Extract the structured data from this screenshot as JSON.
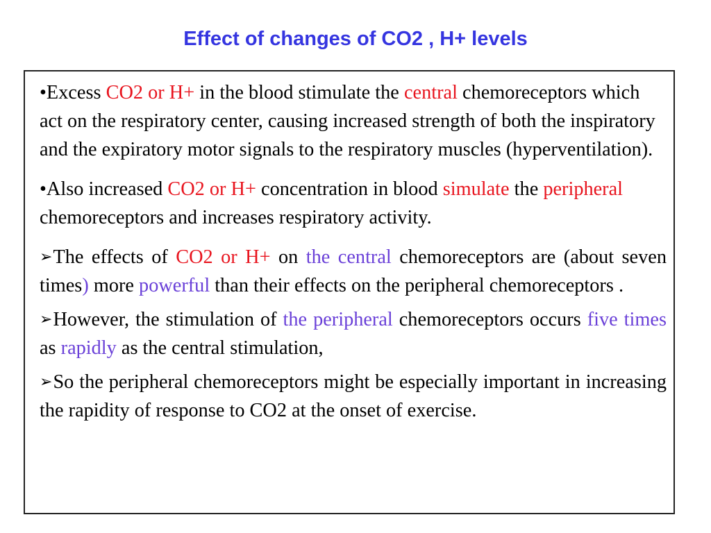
{
  "title": "Effect of changes of CO2 , H+ levels",
  "bullets": {
    "b1": {
      "marker": "•",
      "t1": "Excess ",
      "t2": "CO2 or H+",
      "t3": " in the blood stimulate the ",
      "t4": "central",
      "t5": " chemoreceptors  which act on the respiratory center, causing increased strength of both the inspiratory and the expiratory motor signals to the respiratory muscles (hyperventilation)."
    },
    "b2": {
      "marker": "•",
      "t1": "Also  increased ",
      "t2": "CO2  or H+",
      "t3": " concentration in blood  ",
      "t4": "simulate",
      "t5": " the ",
      "t6": "peripheral",
      "t7": " chemoreceptors and increases respiratory activity."
    }
  },
  "arrows": {
    "a1": {
      "marker": "➢",
      "t1": "The effects of ",
      "t2": "CO2 or H+",
      "t3": " on  ",
      "t4": "the central",
      "t5": " chemoreceptors are (about seven times",
      "t6": ")",
      "t7": " more ",
      "t8": "powerful",
      "t9": " than their effects on the peripheral chemoreceptors ."
    },
    "a2": {
      "marker": "➢",
      "t1": "However, the stimulation of ",
      "t2": "the peripheral",
      "t3": " chemoreceptors occurs ",
      "t4": "five times",
      "t5": " as ",
      "t6": "rapidly",
      "t7": " as the central stimulation,"
    },
    "a3": {
      "marker": "➢",
      "t1": "So the peripheral chemoreceptors might be especially important in increasing the rapidity of response to CO2 at the onset of exercise."
    }
  },
  "colors": {
    "title": "#3535e0",
    "emphasis_red": "#e8141e",
    "emphasis_purple": "#6a40d8",
    "border": "#222222"
  }
}
